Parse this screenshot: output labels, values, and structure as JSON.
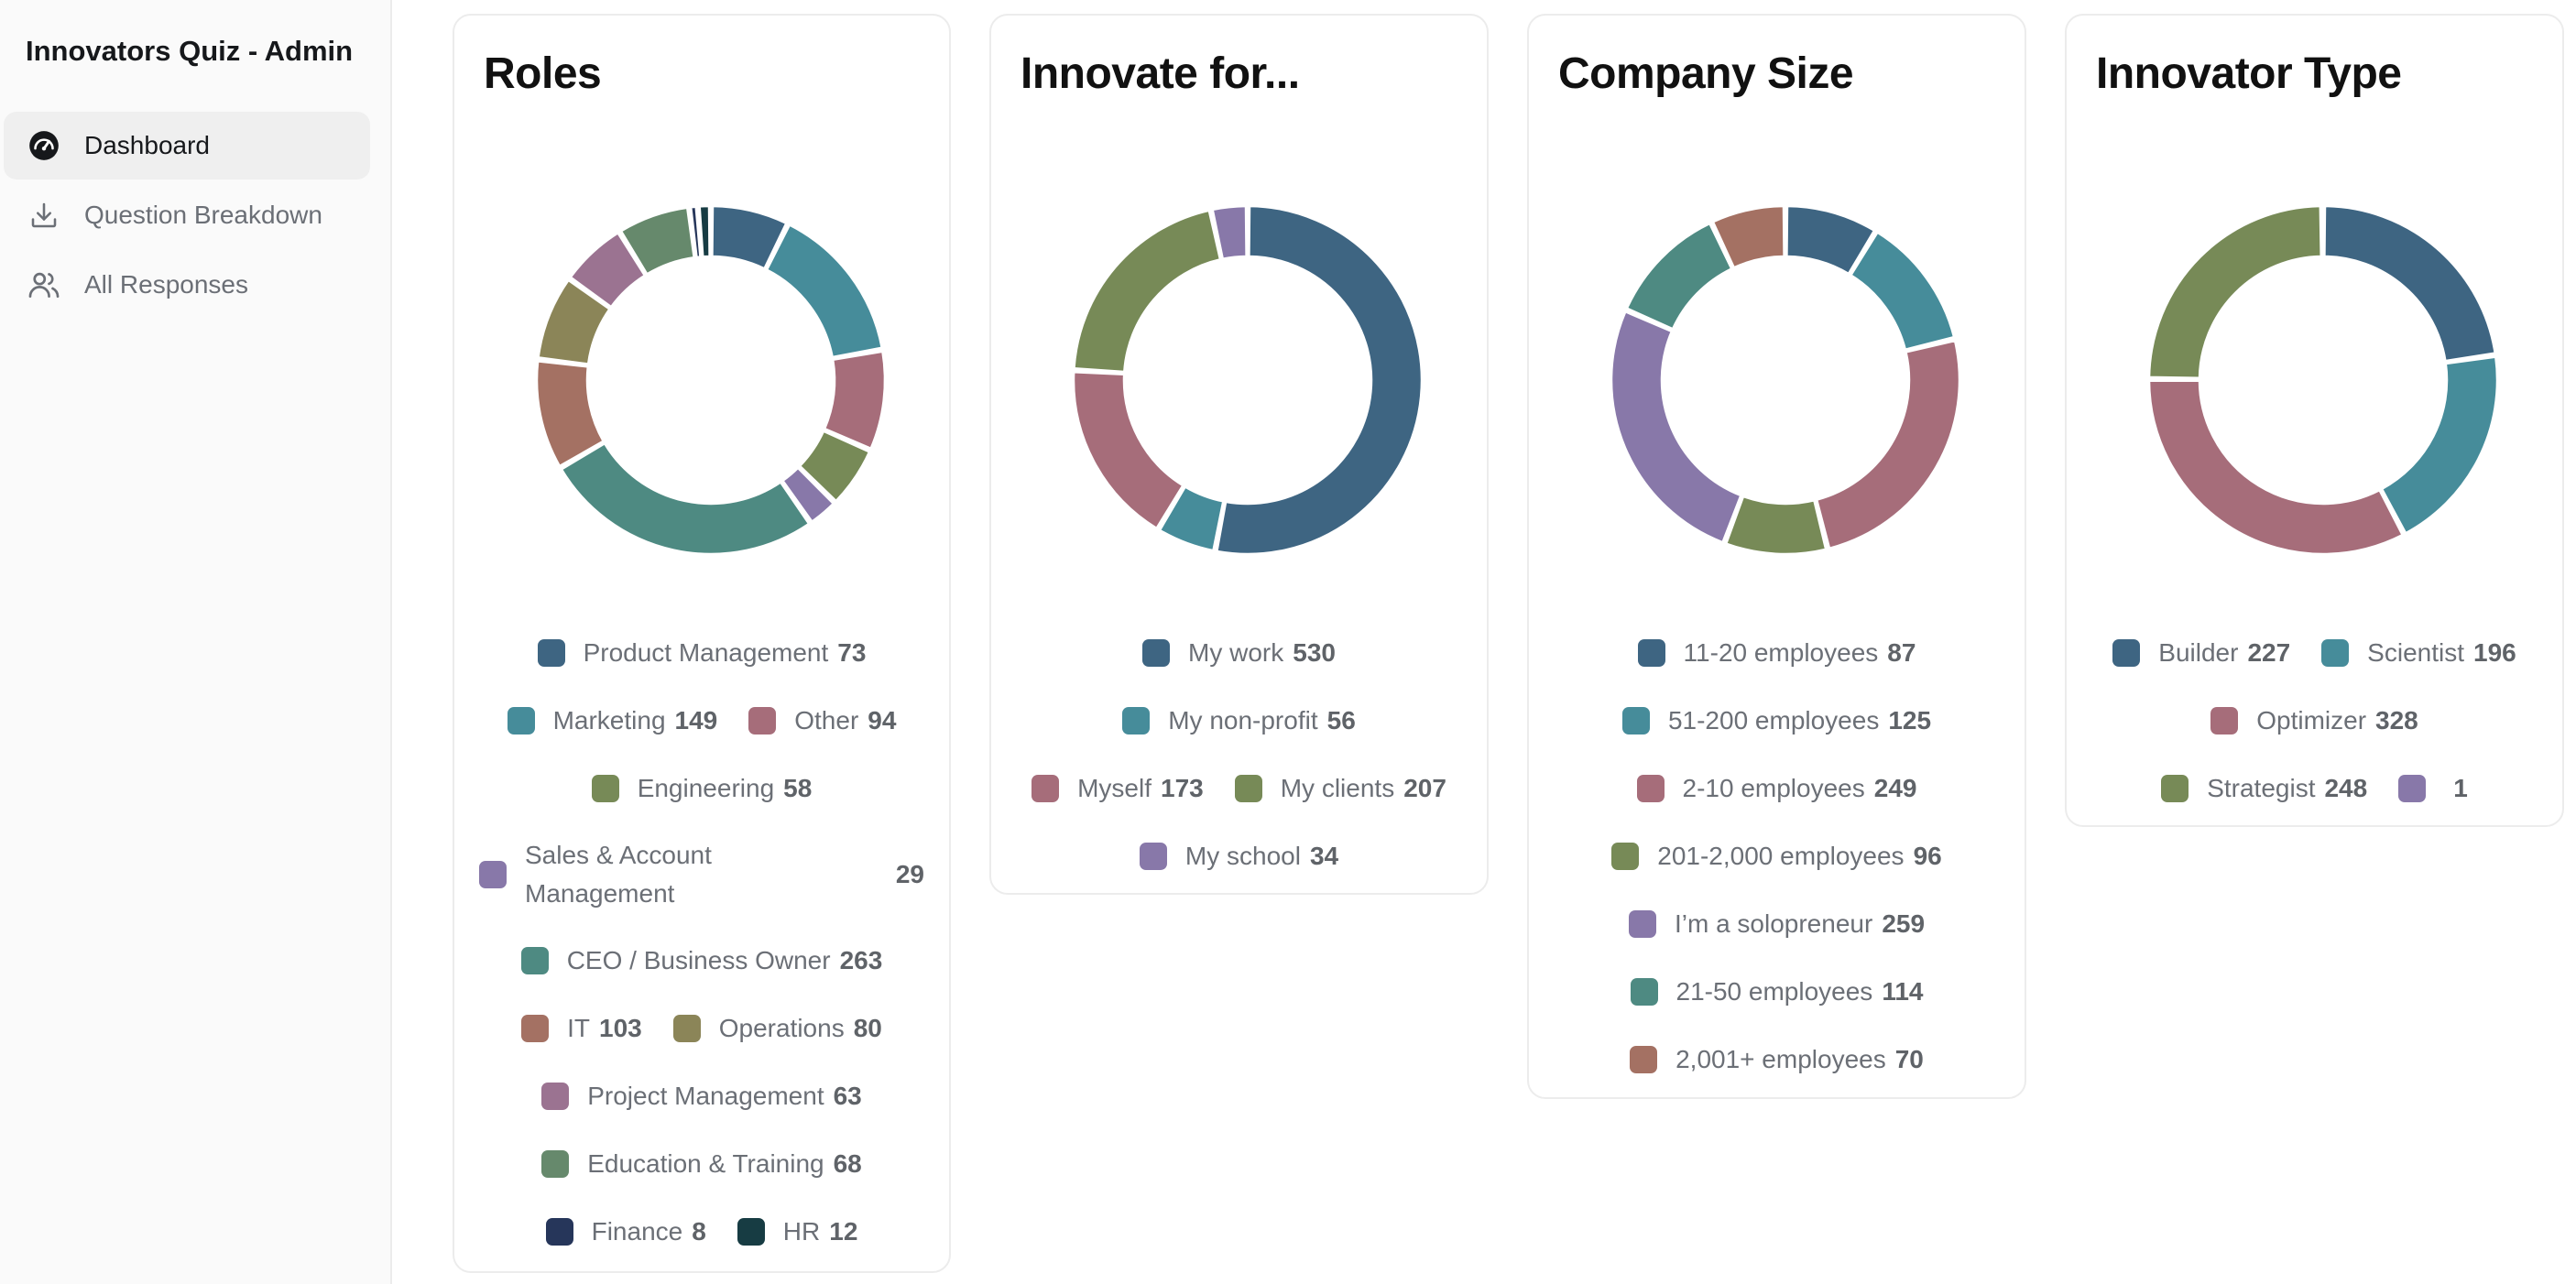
{
  "app": {
    "title": "Innovators Quiz - Admin"
  },
  "nav": [
    {
      "label": "Dashboard",
      "icon": "gauge-icon",
      "active": true
    },
    {
      "label": "Question Breakdown",
      "icon": "download-icon",
      "active": false
    },
    {
      "label": "All Responses",
      "icon": "users-icon",
      "active": false
    }
  ],
  "colors": {
    "navy": "#3e6582",
    "teal": "#468c9a",
    "rose": "#a66d7a",
    "olive": "#778a57",
    "lavender": "#8878a9",
    "green_teal": "#4e8a82",
    "brick": "#a47163",
    "khaki": "#8b8558",
    "mauve": "#9b7391",
    "sage": "#66896c",
    "dark_navy": "#26365a",
    "dark_teal": "#173c43"
  },
  "cards": [
    {
      "title": "Roles",
      "chart_data": {
        "type": "pie",
        "title": "Roles",
        "categories": [
          "Product Management",
          "Marketing",
          "Other",
          "Engineering",
          "Sales & Account Management",
          "CEO / Business Owner",
          "IT",
          "Operations",
          "Project Management",
          "Education & Training",
          "Finance",
          "HR"
        ],
        "values": [
          73,
          149,
          94,
          58,
          29,
          263,
          103,
          80,
          63,
          68,
          8,
          12
        ],
        "donut": true,
        "legend": "bottom"
      },
      "legend": [
        {
          "name": "Product Management",
          "value": "73",
          "color": "#3e6582"
        },
        {
          "name": "Marketing",
          "value": "149",
          "color": "#468c9a"
        },
        {
          "name": "Other",
          "value": "94",
          "color": "#a66d7a"
        },
        {
          "name": "Engineering",
          "value": "58",
          "color": "#778a57"
        },
        {
          "name": "Sales & Account Management",
          "value": "29",
          "color": "#8878a9"
        },
        {
          "name": "CEO / Business Owner",
          "value": "263",
          "color": "#4e8a82"
        },
        {
          "name": "IT",
          "value": "103",
          "color": "#a47163"
        },
        {
          "name": "Operations",
          "value": "80",
          "color": "#8b8558"
        },
        {
          "name": "Project Management",
          "value": "63",
          "color": "#9b7391"
        },
        {
          "name": "Education & Training",
          "value": "68",
          "color": "#66896c"
        },
        {
          "name": "Finance",
          "value": "8",
          "color": "#26365a"
        },
        {
          "name": "HR",
          "value": "12",
          "color": "#173c43"
        }
      ]
    },
    {
      "title": "Innovate for...",
      "chart_data": {
        "type": "pie",
        "title": "Innovate for...",
        "categories": [
          "My work",
          "My non-profit",
          "Myself",
          "My clients",
          "My school"
        ],
        "values": [
          530,
          56,
          173,
          207,
          34
        ],
        "donut": true,
        "legend": "bottom"
      },
      "legend": [
        {
          "name": "My work",
          "value": "530",
          "color": "#3e6582"
        },
        {
          "name": "My non-profit",
          "value": "56",
          "color": "#468c9a"
        },
        {
          "name": "Myself",
          "value": "173",
          "color": "#a66d7a"
        },
        {
          "name": "My clients",
          "value": "207",
          "color": "#778a57"
        },
        {
          "name": "My school",
          "value": "34",
          "color": "#8878a9"
        }
      ]
    },
    {
      "title": "Company Size",
      "chart_data": {
        "type": "pie",
        "title": "Company Size",
        "categories": [
          "11-20 employees",
          "51-200 employees",
          "2-10 employees",
          "201-2,000 employees",
          "I'm a solopreneur",
          "21-50 employees",
          "2,001+ employees"
        ],
        "values": [
          87,
          125,
          249,
          96,
          259,
          114,
          70
        ],
        "donut": true,
        "legend": "bottom"
      },
      "legend": [
        {
          "name": "11-20 employees",
          "value": "87",
          "color": "#3e6582"
        },
        {
          "name": "51-200 employees",
          "value": "125",
          "color": "#468c9a"
        },
        {
          "name": "2-10 employees",
          "value": "249",
          "color": "#a66d7a"
        },
        {
          "name": "201-2,000 employees",
          "value": "96",
          "color": "#778a57"
        },
        {
          "name": "I’m a solopreneur",
          "value": "259",
          "color": "#8878a9"
        },
        {
          "name": "21-50 employees",
          "value": "114",
          "color": "#4e8a82"
        },
        {
          "name": "2,001+ employees",
          "value": "70",
          "color": "#a47163"
        }
      ]
    },
    {
      "title": "Innovator Type",
      "chart_data": {
        "type": "pie",
        "title": "Innovator Type",
        "categories": [
          "Builder",
          "Scientist",
          "Optimizer",
          "Strategist",
          ""
        ],
        "values": [
          227,
          196,
          328,
          248,
          1
        ],
        "donut": true,
        "legend": "bottom"
      },
      "legend": [
        {
          "name": "Builder",
          "value": "227",
          "color": "#3e6582"
        },
        {
          "name": "Scientist",
          "value": "196",
          "color": "#468c9a"
        },
        {
          "name": "Optimizer",
          "value": "328",
          "color": "#a66d7a"
        },
        {
          "name": "Strategist",
          "value": "248",
          "color": "#778a57"
        },
        {
          "name": "",
          "value": "1",
          "color": "#8878a9"
        }
      ]
    }
  ]
}
